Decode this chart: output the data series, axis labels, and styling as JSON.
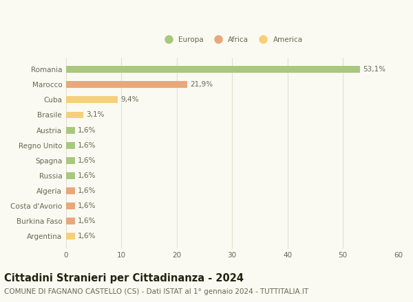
{
  "categories": [
    "Romania",
    "Marocco",
    "Cuba",
    "Brasile",
    "Austria",
    "Regno Unito",
    "Spagna",
    "Russia",
    "Algeria",
    "Costa d'Avorio",
    "Burkina Faso",
    "Argentina"
  ],
  "values": [
    53.1,
    21.9,
    9.4,
    3.1,
    1.6,
    1.6,
    1.6,
    1.6,
    1.6,
    1.6,
    1.6,
    1.6
  ],
  "labels": [
    "53,1%",
    "21,9%",
    "9,4%",
    "3,1%",
    "1,6%",
    "1,6%",
    "1,6%",
    "1,6%",
    "1,6%",
    "1,6%",
    "1,6%",
    "1,6%"
  ],
  "bar_colors": [
    "#a8c87e",
    "#e8a87c",
    "#f5d07a",
    "#f5d07a",
    "#a8c87e",
    "#a8c87e",
    "#a8c87e",
    "#a8c87e",
    "#e8a87c",
    "#e8a87c",
    "#e8a87c",
    "#f5d07a"
  ],
  "legend_labels": [
    "Europa",
    "Africa",
    "America"
  ],
  "legend_colors": [
    "#a8c87e",
    "#e8a87c",
    "#f5d07a"
  ],
  "xlim": [
    0,
    60
  ],
  "xticks": [
    0,
    10,
    20,
    30,
    40,
    50,
    60
  ],
  "title": "Cittadini Stranieri per Cittadinanza - 2024",
  "subtitle": "COMUNE DI FAGNANO CASTELLO (CS) - Dati ISTAT al 1° gennaio 2024 - TUTTITALIA.IT",
  "background_color": "#fafaf2",
  "grid_color": "#e0e0d0",
  "text_color": "#666655",
  "title_fontsize": 10.5,
  "subtitle_fontsize": 7.5,
  "label_fontsize": 7.5,
  "tick_fontsize": 7.5,
  "bar_height": 0.45
}
